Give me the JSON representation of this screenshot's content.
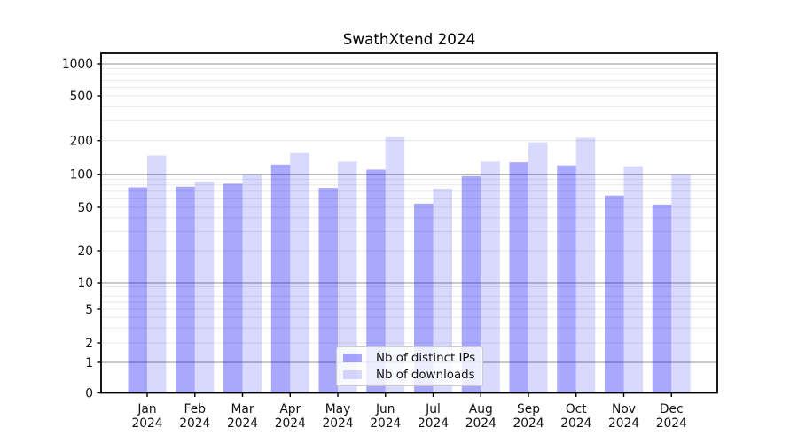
{
  "chart_data": {
    "type": "bar",
    "title": "SwathXtend 2024",
    "categories": [
      "Jan",
      "Feb",
      "Mar",
      "Apr",
      "May",
      "Jun",
      "Jul",
      "Aug",
      "Sep",
      "Oct",
      "Nov",
      "Dec"
    ],
    "x_year": "2024",
    "series": [
      {
        "name": "Nb of distinct IPs",
        "color": "rgba(0,0,250,0.34)",
        "values": [
          76,
          77,
          82,
          122,
          75,
          110,
          54,
          96,
          128,
          120,
          64,
          53
        ]
      },
      {
        "name": "Nb of downloads",
        "color": "rgba(0,0,250,0.15)",
        "values": [
          147,
          86,
          100,
          155,
          130,
          215,
          74,
          130,
          193,
          212,
          118,
          100
        ]
      }
    ],
    "y_axis": {
      "scale": "symlog",
      "range": [
        0,
        1000
      ],
      "ticks": [
        0,
        1,
        2,
        5,
        10,
        20,
        50,
        100,
        200,
        500,
        1000
      ],
      "major_gridlines": [
        1,
        10,
        100,
        1000
      ],
      "minor_gridlines": [
        2,
        3,
        4,
        5,
        6,
        7,
        8,
        9,
        20,
        30,
        40,
        50,
        60,
        70,
        80,
        90,
        200,
        300,
        400,
        500,
        600,
        700,
        800,
        900
      ]
    },
    "xlabel": "",
    "ylabel": "",
    "grid": true,
    "legend_position": "lower center",
    "colors": {
      "grid_major": "#a9a9a9",
      "grid_minor": "#e8e8e8",
      "spine": "#000000",
      "text": "#111111"
    }
  }
}
